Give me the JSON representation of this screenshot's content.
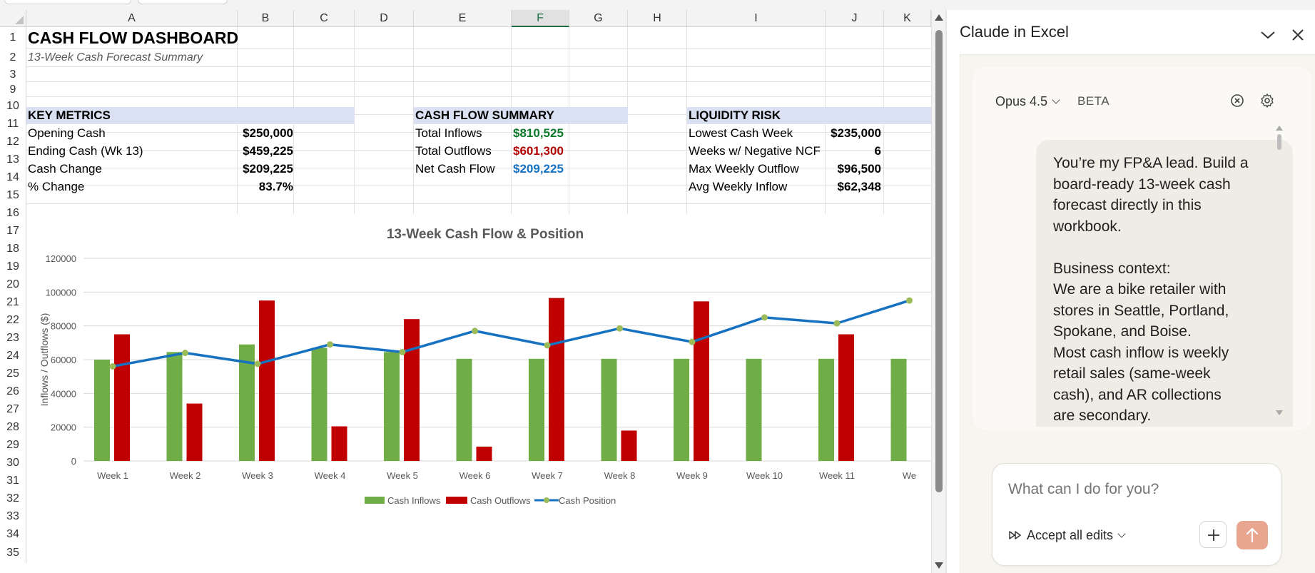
{
  "sheet": {
    "columns": [
      "A",
      "B",
      "C",
      "D",
      "E",
      "F",
      "G",
      "H",
      "I",
      "J",
      "K"
    ],
    "active_column": "F",
    "rows": [
      "1",
      "2",
      "3",
      "9",
      "10",
      "11",
      "12",
      "13",
      "14",
      "15",
      "16",
      "17",
      "18",
      "19",
      "20",
      "21",
      "22",
      "23",
      "24",
      "25",
      "26",
      "27",
      "28",
      "29",
      "30",
      "31",
      "32",
      "33",
      "34",
      "35"
    ],
    "title": "CASH FLOW DASHBOARD",
    "subtitle": "13-Week Cash Forecast Summary",
    "key_metrics": {
      "header": "KEY METRICS",
      "items": [
        {
          "label": "Opening Cash",
          "value": "$250,000"
        },
        {
          "label": "Ending Cash (Wk 13)",
          "value": "$459,225"
        },
        {
          "label": "Cash Change",
          "value": "$209,225"
        },
        {
          "label": "% Change",
          "value": "83.7%"
        }
      ]
    },
    "cash_flow_summary": {
      "header": "CASH FLOW SUMMARY",
      "items": [
        {
          "label": "Total Inflows",
          "value": "$810,525"
        },
        {
          "label": "Total Outflows",
          "value": "$601,300"
        },
        {
          "label": "Net Cash Flow",
          "value": "$209,225"
        }
      ]
    },
    "liquidity_risk": {
      "header": "LIQUIDITY RISK",
      "items": [
        {
          "label": "Lowest Cash Week",
          "value": "$235,000"
        },
        {
          "label": "Weeks w/ Negative NCF",
          "value": "6"
        },
        {
          "label": "Max Weekly Outflow",
          "value": "$96,500"
        },
        {
          "label": "Avg Weekly Inflow",
          "value": "$62,348"
        }
      ]
    },
    "colors": {
      "inflow": "#70ad47",
      "outflow": "#c00000",
      "position": "#1672c1",
      "marker": "#9bbb59",
      "band": "#d9e1f2"
    }
  },
  "chart_data": {
    "type": "bar",
    "title": "13-Week Cash Flow & Position",
    "xlabel": "",
    "ylabel": "Inflows / Outflows ($)",
    "ylim": [
      0,
      120000
    ],
    "yticks": [
      0,
      20000,
      40000,
      60000,
      80000,
      100000,
      120000
    ],
    "grid": true,
    "legend": "bottom",
    "categories": [
      "Week 1",
      "Week 2",
      "Week 3",
      "Week 4",
      "Week 5",
      "Week 6",
      "Week 7",
      "Week 8",
      "Week 9",
      "Week 10",
      "Week 11",
      "We"
    ],
    "series": [
      {
        "name": "Cash Inflows",
        "type": "bar",
        "values": [
          60000,
          64500,
          69000,
          67000,
          64500,
          60500,
          60500,
          60500,
          60500,
          60500,
          60500,
          60500
        ]
      },
      {
        "name": "Cash Outflows",
        "type": "bar",
        "values": [
          75000,
          34000,
          95000,
          20500,
          84000,
          8500,
          96500,
          18000,
          94500,
          0,
          75000,
          0
        ]
      },
      {
        "name": "Cash Position",
        "type": "line",
        "values": [
          56000,
          64000,
          57500,
          69000,
          64500,
          77000,
          68500,
          78500,
          70500,
          85000,
          81500,
          95000
        ]
      }
    ]
  },
  "panel": {
    "title": "Claude in Excel",
    "model": "Opus 4.5",
    "badge": "BETA",
    "message_lines": [
      "You’re my FP&A lead. Build a",
      "board-ready 13-week cash",
      "forecast directly in this",
      "workbook.",
      "",
      "Business context:",
      "We are a bike retailer with",
      "stores in Seattle, Portland,",
      "Spokane, and Boise.",
      "Most cash inflow is weekly",
      "retail sales (same-week",
      "cash), and AR collections",
      "are secondary."
    ],
    "input_placeholder": "What can I do for you?",
    "accept_label": "Accept all edits"
  }
}
